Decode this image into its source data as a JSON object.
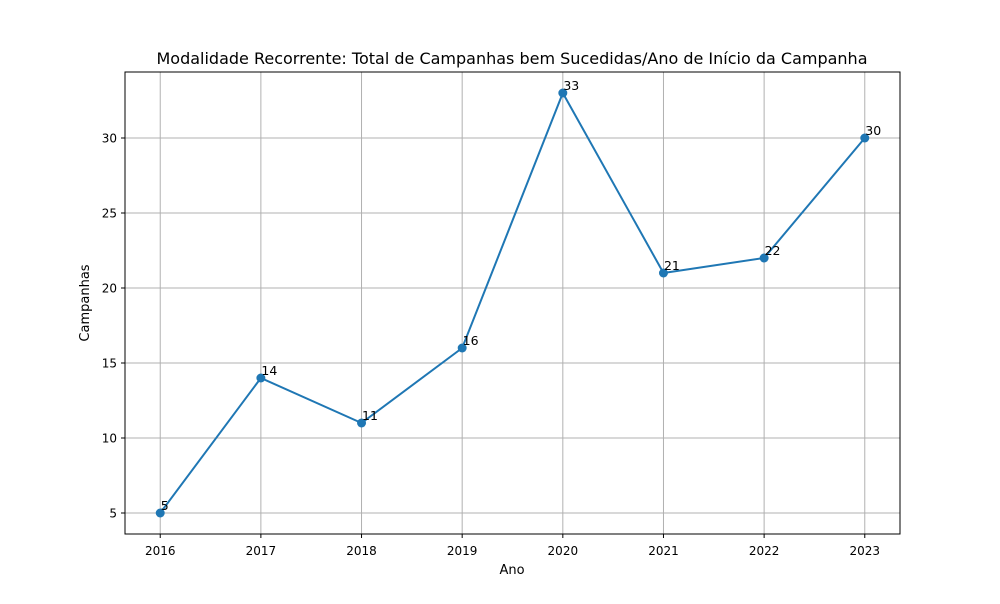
{
  "chart_data": {
    "type": "line",
    "title": "Modalidade Recorrente: Total de Campanhas bem Sucedidas/Ano de Início da Campanha",
    "xlabel": "Ano",
    "ylabel": "Campanhas",
    "x": [
      2016,
      2017,
      2018,
      2019,
      2020,
      2021,
      2022,
      2023
    ],
    "x_tick_labels": [
      "2016",
      "2017",
      "2018",
      "2019",
      "2020",
      "2021",
      "2022",
      "2023"
    ],
    "series": [
      {
        "values": [
          5,
          14,
          11,
          16,
          33,
          21,
          22,
          30
        ],
        "data_labels": [
          "5",
          "14",
          "11",
          "16",
          "33",
          "21",
          "22",
          "30"
        ],
        "color": "#1f77b4",
        "marker": "circle"
      }
    ],
    "y_ticks": [
      5,
      10,
      15,
      20,
      25,
      30
    ],
    "y_tick_labels": [
      "5",
      "10",
      "15",
      "20",
      "25",
      "30"
    ],
    "xlim": [
      2015.65,
      2023.35
    ],
    "ylim": [
      3.6,
      34.4
    ],
    "grid": true,
    "legend": "none"
  }
}
